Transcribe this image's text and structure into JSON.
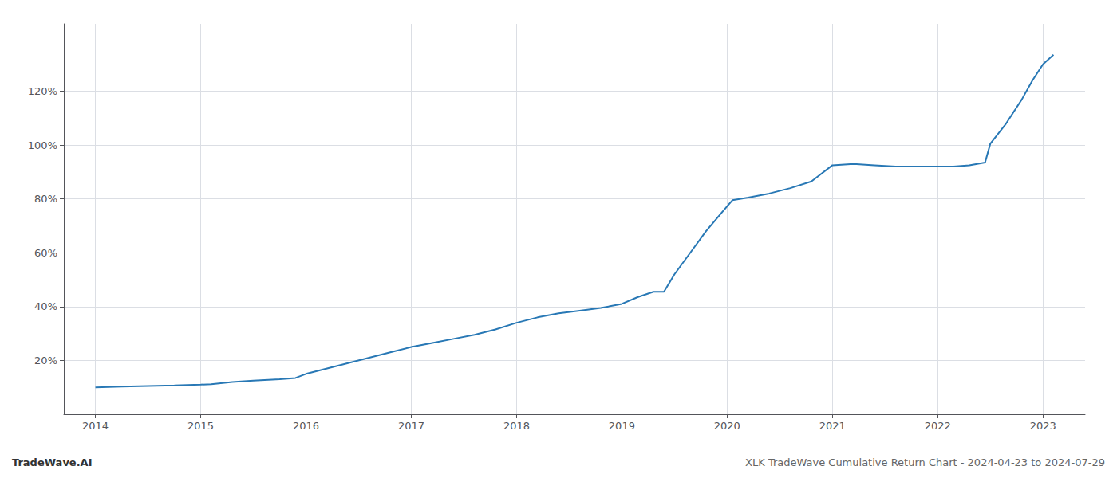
{
  "chart_data": {
    "type": "line",
    "title": "XLK TradeWave Cumulative Return Chart - 2024-04-23 to 2024-07-29",
    "annotations": [
      "TradeWave.AI"
    ],
    "color": "#2878b5",
    "grid": true,
    "x": [
      2014.0,
      2014.25,
      2014.5,
      2014.75,
      2015.0,
      2015.1,
      2015.3,
      2015.5,
      2015.75,
      2015.9,
      2016.0,
      2016.2,
      2016.4,
      2016.6,
      2016.8,
      2017.0,
      2017.2,
      2017.4,
      2017.6,
      2017.8,
      2018.0,
      2018.2,
      2018.4,
      2018.6,
      2018.8,
      2019.0,
      2019.15,
      2019.3,
      2019.4,
      2019.5,
      2019.65,
      2019.8,
      2019.95,
      2020.05,
      2020.2,
      2020.4,
      2020.6,
      2020.8,
      2021.0,
      2021.2,
      2021.4,
      2021.6,
      2021.8,
      2022.0,
      2022.15,
      2022.3,
      2022.45,
      2022.5,
      2022.65,
      2022.8,
      2022.9,
      2023.0,
      2023.1
    ],
    "values": [
      10.0,
      10.3,
      10.5,
      10.7,
      11.0,
      11.2,
      12.0,
      12.5,
      13.0,
      13.5,
      15.0,
      17.0,
      19.0,
      21.0,
      23.0,
      25.0,
      26.5,
      28.0,
      29.5,
      31.5,
      34.0,
      36.0,
      37.5,
      38.5,
      39.5,
      41.0,
      43.5,
      45.5,
      45.5,
      52.0,
      60.0,
      68.0,
      75.0,
      79.5,
      80.5,
      82.0,
      84.0,
      86.5,
      92.5,
      93.0,
      92.5,
      92.0,
      92.0,
      92.0,
      92.0,
      92.5,
      93.5,
      100.5,
      108.0,
      117.0,
      124.0,
      130.0,
      133.5
    ],
    "xlim": [
      2013.7,
      2023.4
    ],
    "xticks": [
      2014,
      2015,
      2016,
      2017,
      2018,
      2019,
      2020,
      2021,
      2022,
      2023
    ],
    "ylim": [
      0,
      145
    ],
    "yticks": [
      {
        "value": 20,
        "label": "20%"
      },
      {
        "value": 40,
        "label": "40%"
      },
      {
        "value": 60,
        "label": "60%"
      },
      {
        "value": 80,
        "label": "80%"
      },
      {
        "value": 100,
        "label": "100%"
      },
      {
        "value": 120,
        "label": "120%"
      }
    ]
  }
}
